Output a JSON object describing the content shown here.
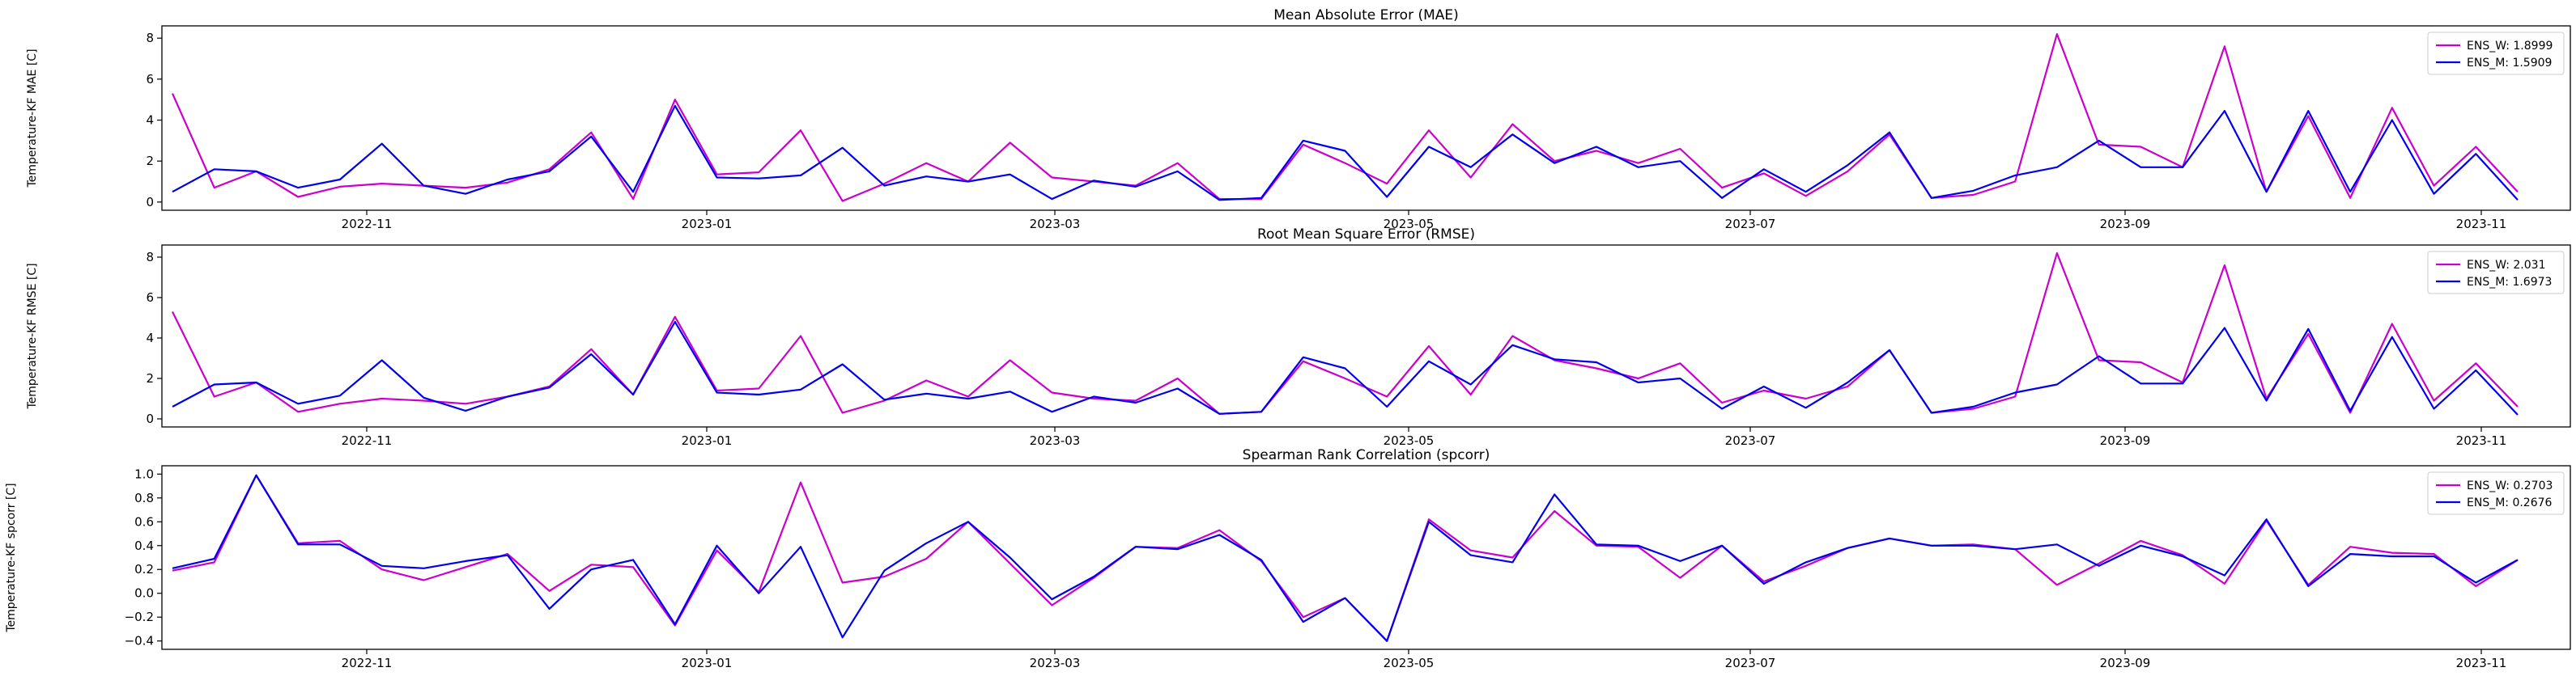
{
  "colors": {
    "ens_w": "#cc00cc",
    "ens_m": "#0000ee",
    "axes": "#000000",
    "background": "#ffffff"
  },
  "x_ticks": [
    "2022-11",
    "2023-01",
    "2023-03",
    "2023-05",
    "2023-07",
    "2023-09",
    "2023-11"
  ],
  "chart_data": [
    {
      "type": "line",
      "title": "Mean Absolute Error (MAE)",
      "xlabel": "",
      "ylabel": "Temperature-KF MAE [C]",
      "ylim": [
        -0.4,
        8.6
      ],
      "yticks": [
        "0",
        "2",
        "4",
        "6",
        "8"
      ],
      "legend": "top-right",
      "grid": false,
      "series": [
        {
          "name": "ENS_W",
          "legend_label": "ENS_W: 1.8999",
          "values": [
            5.3,
            0.7,
            1.5,
            0.25,
            0.75,
            0.9,
            0.8,
            0.7,
            0.95,
            1.6,
            3.4,
            0.15,
            5.0,
            1.35,
            1.45,
            3.5,
            0.05,
            0.9,
            1.9,
            1.0,
            2.9,
            1.2,
            1.0,
            0.8,
            1.9,
            0.15,
            0.15,
            2.8,
            1.9,
            0.9,
            3.5,
            1.2,
            3.8,
            2.0,
            2.5,
            1.9,
            2.6,
            0.7,
            1.4,
            0.3,
            1.5,
            3.3,
            0.2,
            0.35,
            1.0,
            8.2,
            2.8,
            2.7,
            1.7,
            7.6,
            0.5,
            4.2,
            0.2,
            4.6,
            0.8,
            2.7,
            0.5
          ]
        },
        {
          "name": "ENS_M",
          "legend_label": "ENS_M: 1.5909",
          "values": [
            0.5,
            1.6,
            1.5,
            0.7,
            1.1,
            2.85,
            0.8,
            0.4,
            1.1,
            1.5,
            3.2,
            0.5,
            4.7,
            1.2,
            1.15,
            1.3,
            2.65,
            0.8,
            1.25,
            1.0,
            1.35,
            0.15,
            1.05,
            0.75,
            1.5,
            0.1,
            0.2,
            3.0,
            2.5,
            0.25,
            2.7,
            1.7,
            3.3,
            1.9,
            2.7,
            1.7,
            2.0,
            0.2,
            1.6,
            0.5,
            1.8,
            3.4,
            0.2,
            0.55,
            1.3,
            1.7,
            3.0,
            1.7,
            1.7,
            4.45,
            0.5,
            4.45,
            0.5,
            4.0,
            0.4,
            2.35,
            0.1
          ]
        }
      ]
    },
    {
      "type": "line",
      "title": "Root Mean Square Error (RMSE)",
      "xlabel": "",
      "ylabel": "Temperature-KF RMSE [C]",
      "ylim": [
        -0.4,
        8.6
      ],
      "yticks": [
        "0",
        "2",
        "4",
        "6",
        "8"
      ],
      "legend": "top-right",
      "grid": false,
      "series": [
        {
          "name": "ENS_W",
          "legend_label": "ENS_W: 2.031",
          "values": [
            5.3,
            1.1,
            1.8,
            0.35,
            0.75,
            1.0,
            0.9,
            0.75,
            1.1,
            1.6,
            3.45,
            1.2,
            5.05,
            1.4,
            1.5,
            4.1,
            0.3,
            0.9,
            1.9,
            1.1,
            2.9,
            1.3,
            1.0,
            0.9,
            2.0,
            0.25,
            0.35,
            2.85,
            2.0,
            1.1,
            3.6,
            1.2,
            4.1,
            2.9,
            2.5,
            2.0,
            2.75,
            0.8,
            1.4,
            1.0,
            1.6,
            3.4,
            0.3,
            0.5,
            1.1,
            8.2,
            2.9,
            2.8,
            1.8,
            7.6,
            1.0,
            4.2,
            0.3,
            4.7,
            0.9,
            2.75,
            0.6
          ]
        },
        {
          "name": "ENS_M",
          "legend_label": "ENS_M: 1.6973",
          "values": [
            0.6,
            1.7,
            1.8,
            0.75,
            1.15,
            2.9,
            1.05,
            0.4,
            1.1,
            1.55,
            3.2,
            1.2,
            4.8,
            1.3,
            1.2,
            1.45,
            2.7,
            0.95,
            1.25,
            1.0,
            1.35,
            0.35,
            1.1,
            0.8,
            1.5,
            0.25,
            0.35,
            3.05,
            2.5,
            0.6,
            2.85,
            1.7,
            3.65,
            2.95,
            2.8,
            1.8,
            2.0,
            0.5,
            1.6,
            0.55,
            1.8,
            3.4,
            0.3,
            0.6,
            1.3,
            1.7,
            3.1,
            1.75,
            1.75,
            4.5,
            0.9,
            4.45,
            0.4,
            4.05,
            0.5,
            2.4,
            0.2
          ]
        }
      ]
    },
    {
      "type": "line",
      "title": "Spearman Rank Correlation (spcorr)",
      "xlabel": "",
      "ylabel": "Temperature-KF spcorr [C]",
      "ylim": [
        -0.47,
        1.07
      ],
      "yticks": [
        "−0.4",
        "−0.2",
        "0.0",
        "0.2",
        "0.4",
        "0.6",
        "0.8",
        "1.0"
      ],
      "legend": "top-right",
      "grid": false,
      "series": [
        {
          "name": "ENS_W",
          "legend_label": "ENS_W: 0.2703",
          "values": [
            0.19,
            0.26,
            0.99,
            0.42,
            0.44,
            0.2,
            0.11,
            0.22,
            0.33,
            0.02,
            0.24,
            0.22,
            -0.27,
            0.36,
            0.01,
            0.93,
            0.09,
            0.14,
            0.29,
            0.6,
            0.25,
            -0.1,
            0.13,
            0.39,
            0.38,
            0.53,
            0.27,
            -0.2,
            -0.04,
            -0.4,
            0.62,
            0.36,
            0.3,
            0.69,
            0.4,
            0.39,
            0.13,
            0.4,
            0.1,
            0.23,
            0.38,
            0.46,
            0.4,
            0.41,
            0.37,
            0.07,
            0.25,
            0.44,
            0.32,
            0.08,
            0.61,
            0.07,
            0.39,
            0.34,
            0.33,
            0.06,
            0.28
          ]
        },
        {
          "name": "ENS_M",
          "legend_label": "ENS_M: 0.2676",
          "values": [
            0.21,
            0.29,
            0.99,
            0.41,
            0.41,
            0.23,
            0.21,
            0.27,
            0.32,
            -0.13,
            0.2,
            0.28,
            -0.26,
            0.4,
            0.0,
            0.39,
            -0.37,
            0.19,
            0.42,
            0.6,
            0.3,
            -0.05,
            0.14,
            0.39,
            0.37,
            0.49,
            0.28,
            -0.24,
            -0.04,
            -0.4,
            0.6,
            0.32,
            0.26,
            0.83,
            0.41,
            0.4,
            0.27,
            0.4,
            0.08,
            0.26,
            0.38,
            0.46,
            0.4,
            0.4,
            0.37,
            0.41,
            0.23,
            0.4,
            0.31,
            0.15,
            0.62,
            0.06,
            0.33,
            0.31,
            0.31,
            0.09,
            0.28
          ]
        }
      ]
    }
  ]
}
